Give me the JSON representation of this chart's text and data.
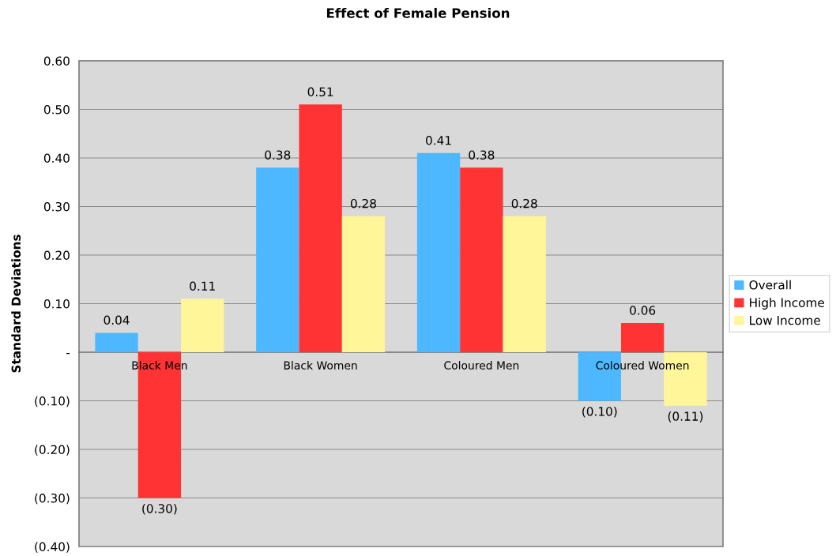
{
  "chart_data": {
    "type": "bar",
    "title": "Effect of Female Pension",
    "ylabel": "Standard Deviations",
    "categories": [
      "Black Men",
      "Black Women",
      "Coloured Men",
      "Coloured Women"
    ],
    "series": [
      {
        "name": "Overall",
        "color": "#4db8ff",
        "values": [
          0.04,
          0.38,
          0.41,
          -0.1
        ],
        "value_labels": [
          "0.04",
          "0.38",
          "0.41",
          "(0.10)"
        ]
      },
      {
        "name": "High Income",
        "color": "#ff3333",
        "values": [
          -0.3,
          0.51,
          0.38,
          0.06
        ],
        "value_labels": [
          "(0.30)",
          "0.51",
          "0.38",
          "0.06"
        ]
      },
      {
        "name": "Low Income",
        "color": "#fff599",
        "values": [
          0.11,
          0.28,
          0.28,
          -0.11
        ],
        "value_labels": [
          "0.11",
          "0.28",
          "0.28",
          "(0.11)"
        ]
      }
    ],
    "ylim": [
      -0.4,
      0.6
    ],
    "yticks": [
      {
        "value": 0.6,
        "label": "0.60"
      },
      {
        "value": 0.5,
        "label": "0.50"
      },
      {
        "value": 0.4,
        "label": "0.40"
      },
      {
        "value": 0.3,
        "label": "0.30"
      },
      {
        "value": 0.2,
        "label": "0.20"
      },
      {
        "value": 0.1,
        "label": "0.10"
      },
      {
        "value": 0,
        "label": "-"
      },
      {
        "value": -0.1,
        "label": "(0.10)"
      },
      {
        "value": -0.2,
        "label": "(0.20)"
      },
      {
        "value": -0.3,
        "label": "(0.30)"
      },
      {
        "value": -0.4,
        "label": "(0.40)"
      }
    ],
    "grid": "y",
    "legend": "right"
  }
}
